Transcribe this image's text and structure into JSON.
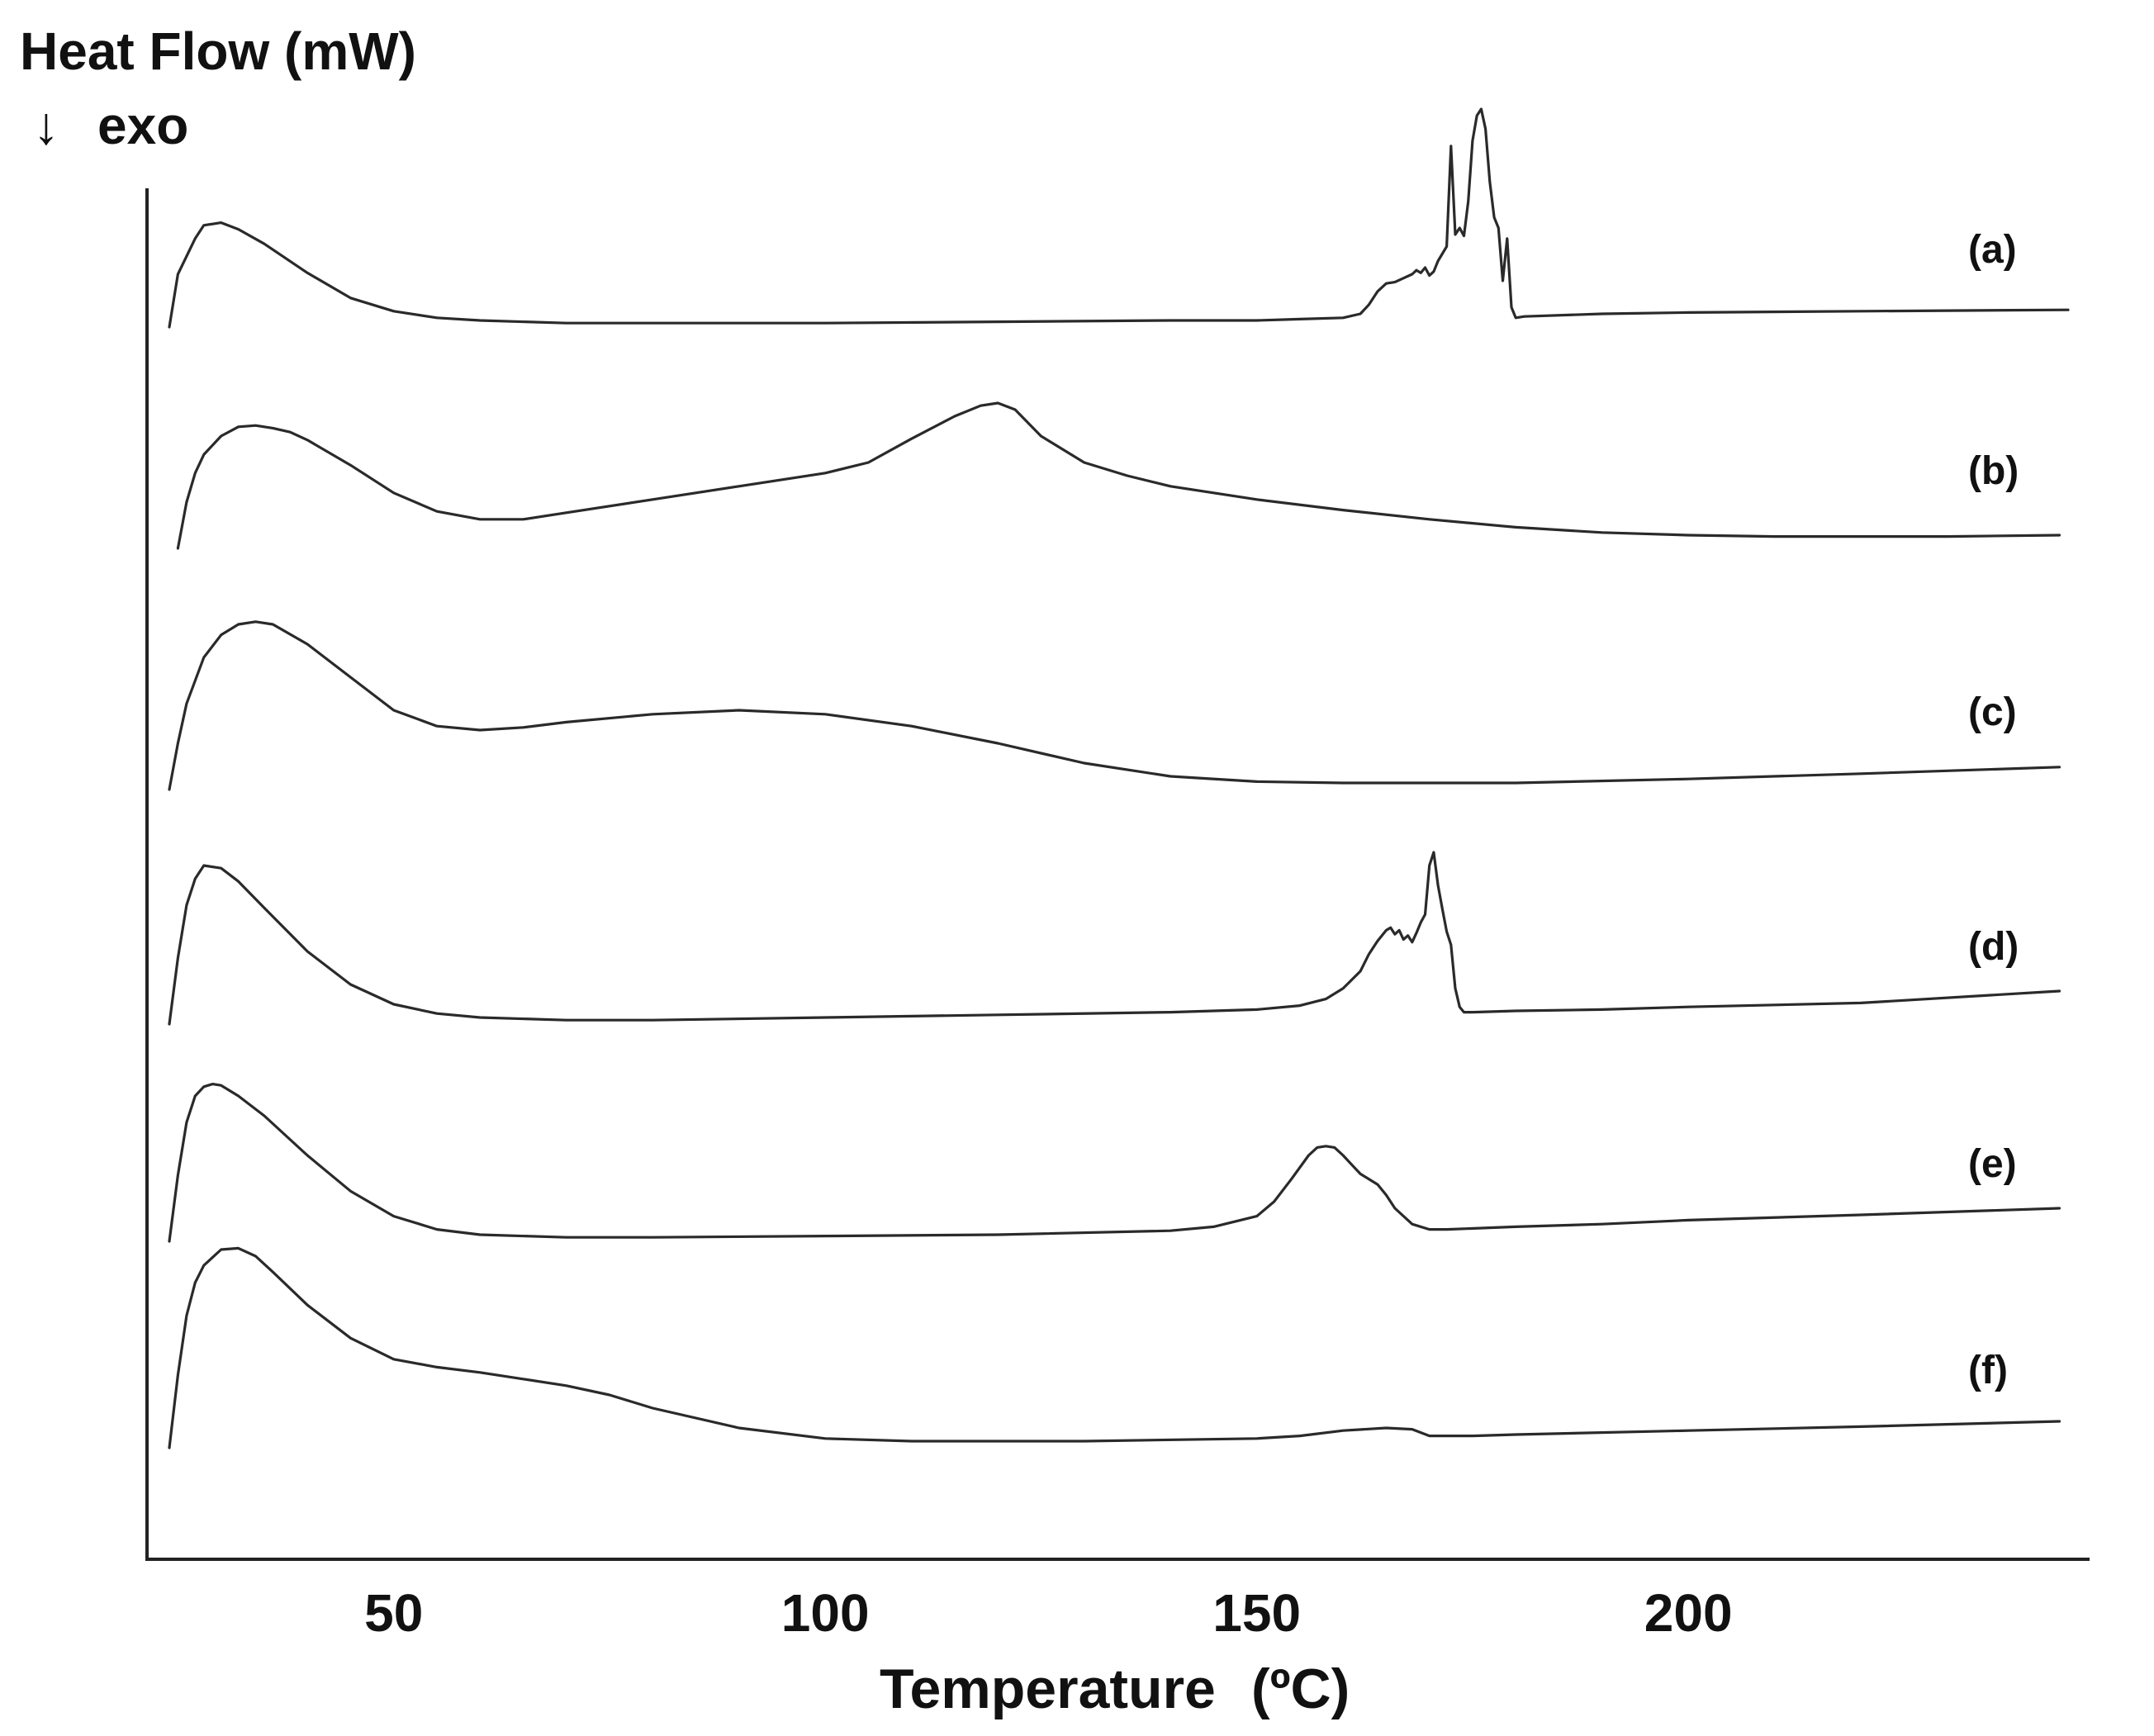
{
  "chart_data": {
    "type": "line",
    "ylabel": "Heat Flow (mW)",
    "ylabel_sub": "exo",
    "xlabel": "Temperature",
    "xunit": "(ºC)",
    "xlim": [
      21,
      245
    ],
    "xticks": [
      50,
      100,
      150,
      200
    ],
    "yticks": "none",
    "grid": false,
    "series": [
      {
        "name": "(a)",
        "peaks": "endotherm at 28 °C; multiple sharp melting peaks 165–178 °C, max at 176 °C",
        "x": [
          24,
          25,
          27,
          28,
          30,
          32,
          35,
          40,
          45,
          50,
          55,
          60,
          70,
          80,
          100,
          120,
          140,
          150,
          155,
          160,
          162,
          163,
          164,
          165,
          166,
          167,
          168,
          168.5,
          169,
          169.5,
          170,
          170.5,
          171,
          172,
          172.5,
          173,
          173.5,
          174,
          174.5,
          175,
          175.5,
          176,
          176.5,
          177,
          177.5,
          178,
          178.5,
          179,
          179.5,
          180,
          181,
          190,
          200,
          220,
          244
        ],
        "y": [
          -0.05,
          0.35,
          0.62,
          0.72,
          0.74,
          0.69,
          0.58,
          0.36,
          0.17,
          0.07,
          0.02,
          0.0,
          -0.02,
          -0.02,
          -0.02,
          -0.01,
          0.0,
          0.0,
          0.01,
          0.02,
          0.05,
          0.12,
          0.22,
          0.28,
          0.29,
          0.32,
          0.35,
          0.38,
          0.36,
          0.4,
          0.34,
          0.37,
          0.45,
          0.56,
          1.32,
          0.65,
          0.7,
          0.64,
          0.9,
          1.36,
          1.55,
          1.6,
          1.45,
          1.05,
          0.78,
          0.7,
          0.3,
          0.62,
          0.1,
          0.02,
          0.03,
          0.05,
          0.06,
          0.07,
          0.08
        ]
      },
      {
        "name": "(b)",
        "peaks": "endotherm at 34 °C; broad endotherm at ~120 °C",
        "x": [
          25,
          26,
          27,
          28,
          30,
          32,
          34,
          36,
          38,
          40,
          45,
          50,
          55,
          60,
          65,
          70,
          80,
          90,
          100,
          105,
          110,
          115,
          118,
          120,
          122,
          125,
          130,
          135,
          140,
          150,
          160,
          170,
          180,
          190,
          200,
          210,
          220,
          230,
          243
        ],
        "y": [
          -0.05,
          0.3,
          0.52,
          0.66,
          0.8,
          0.87,
          0.88,
          0.86,
          0.83,
          0.77,
          0.58,
          0.37,
          0.23,
          0.17,
          0.17,
          0.22,
          0.32,
          0.42,
          0.52,
          0.6,
          0.78,
          0.95,
          1.03,
          1.05,
          1.0,
          0.8,
          0.6,
          0.5,
          0.42,
          0.32,
          0.24,
          0.17,
          0.11,
          0.07,
          0.05,
          0.04,
          0.04,
          0.04,
          0.05
        ]
      },
      {
        "name": "(c)",
        "peaks": "endotherm at 33 °C; broad shoulder ~90 °C",
        "x": [
          24,
          25,
          26,
          28,
          30,
          32,
          34,
          36,
          40,
          45,
          50,
          55,
          60,
          65,
          70,
          80,
          90,
          100,
          110,
          120,
          130,
          140,
          150,
          160,
          170,
          180,
          200,
          220,
          243
        ],
        "y": [
          -0.05,
          0.3,
          0.6,
          0.95,
          1.12,
          1.2,
          1.22,
          1.2,
          1.05,
          0.8,
          0.55,
          0.43,
          0.4,
          0.42,
          0.46,
          0.52,
          0.55,
          0.52,
          0.43,
          0.3,
          0.15,
          0.05,
          0.01,
          0.0,
          0.0,
          0.0,
          0.03,
          0.07,
          0.12
        ]
      },
      {
        "name": "(d)",
        "peaks": "endotherm at 28 °C; melting peaks 165–172 °C, max at 170.5 °C",
        "x": [
          24,
          25,
          26,
          27,
          28,
          30,
          32,
          35,
          40,
          45,
          50,
          55,
          60,
          70,
          80,
          100,
          120,
          140,
          150,
          155,
          158,
          160,
          162,
          163,
          164,
          165,
          165.5,
          166,
          166.5,
          167,
          167.5,
          168,
          168.5,
          169,
          169.5,
          170,
          170.5,
          171,
          171.5,
          172,
          172.5,
          173,
          173.5,
          174,
          175,
          180,
          190,
          200,
          220,
          243
        ],
        "y": [
          -0.05,
          0.45,
          0.85,
          1.05,
          1.15,
          1.13,
          1.03,
          0.83,
          0.5,
          0.25,
          0.1,
          0.03,
          0.0,
          -0.02,
          -0.02,
          0.0,
          0.02,
          0.04,
          0.06,
          0.09,
          0.14,
          0.22,
          0.35,
          0.48,
          0.58,
          0.66,
          0.68,
          0.63,
          0.66,
          0.59,
          0.62,
          0.57,
          0.64,
          0.72,
          0.78,
          1.15,
          1.25,
          1.0,
          0.82,
          0.65,
          0.55,
          0.22,
          0.08,
          0.04,
          0.04,
          0.05,
          0.06,
          0.08,
          0.11,
          0.2
        ]
      },
      {
        "name": "(e)",
        "peaks": "endotherm at 29 °C; melting peak at ~158 °C",
        "x": [
          24,
          25,
          26,
          27,
          28,
          29,
          30,
          32,
          35,
          40,
          45,
          50,
          55,
          60,
          70,
          80,
          100,
          120,
          140,
          145,
          150,
          152,
          154,
          156,
          157,
          158,
          159,
          160,
          161,
          162,
          163,
          164,
          165,
          166,
          168,
          170,
          172,
          180,
          190,
          200,
          220,
          243
        ],
        "y": [
          -0.05,
          0.45,
          0.85,
          1.05,
          1.12,
          1.14,
          1.13,
          1.05,
          0.9,
          0.6,
          0.33,
          0.14,
          0.04,
          0.0,
          -0.02,
          -0.02,
          -0.01,
          0.0,
          0.03,
          0.06,
          0.14,
          0.25,
          0.42,
          0.6,
          0.66,
          0.67,
          0.66,
          0.6,
          0.53,
          0.46,
          0.42,
          0.38,
          0.3,
          0.2,
          0.08,
          0.04,
          0.04,
          0.06,
          0.08,
          0.11,
          0.15,
          0.2
        ]
      },
      {
        "name": "(f)",
        "peaks": "endotherm at 30 °C; slope change ~70 °C; weak peak at ~166 °C",
        "x": [
          24,
          25,
          26,
          27,
          28,
          30,
          32,
          34,
          36,
          40,
          45,
          50,
          55,
          60,
          65,
          70,
          75,
          80,
          90,
          100,
          110,
          130,
          150,
          155,
          160,
          165,
          168,
          170,
          175,
          180,
          200,
          220,
          243
        ],
        "y": [
          -0.05,
          0.5,
          0.95,
          1.2,
          1.33,
          1.45,
          1.46,
          1.4,
          1.28,
          1.03,
          0.78,
          0.62,
          0.56,
          0.52,
          0.47,
          0.42,
          0.35,
          0.25,
          0.1,
          0.02,
          0.0,
          0.0,
          0.02,
          0.04,
          0.08,
          0.1,
          0.09,
          0.04,
          0.04,
          0.05,
          0.08,
          0.11,
          0.15
        ]
      }
    ],
    "legend": "inline labels at right end of each trace",
    "stacked": "traces offset vertically, (a) top to (f) bottom"
  }
}
